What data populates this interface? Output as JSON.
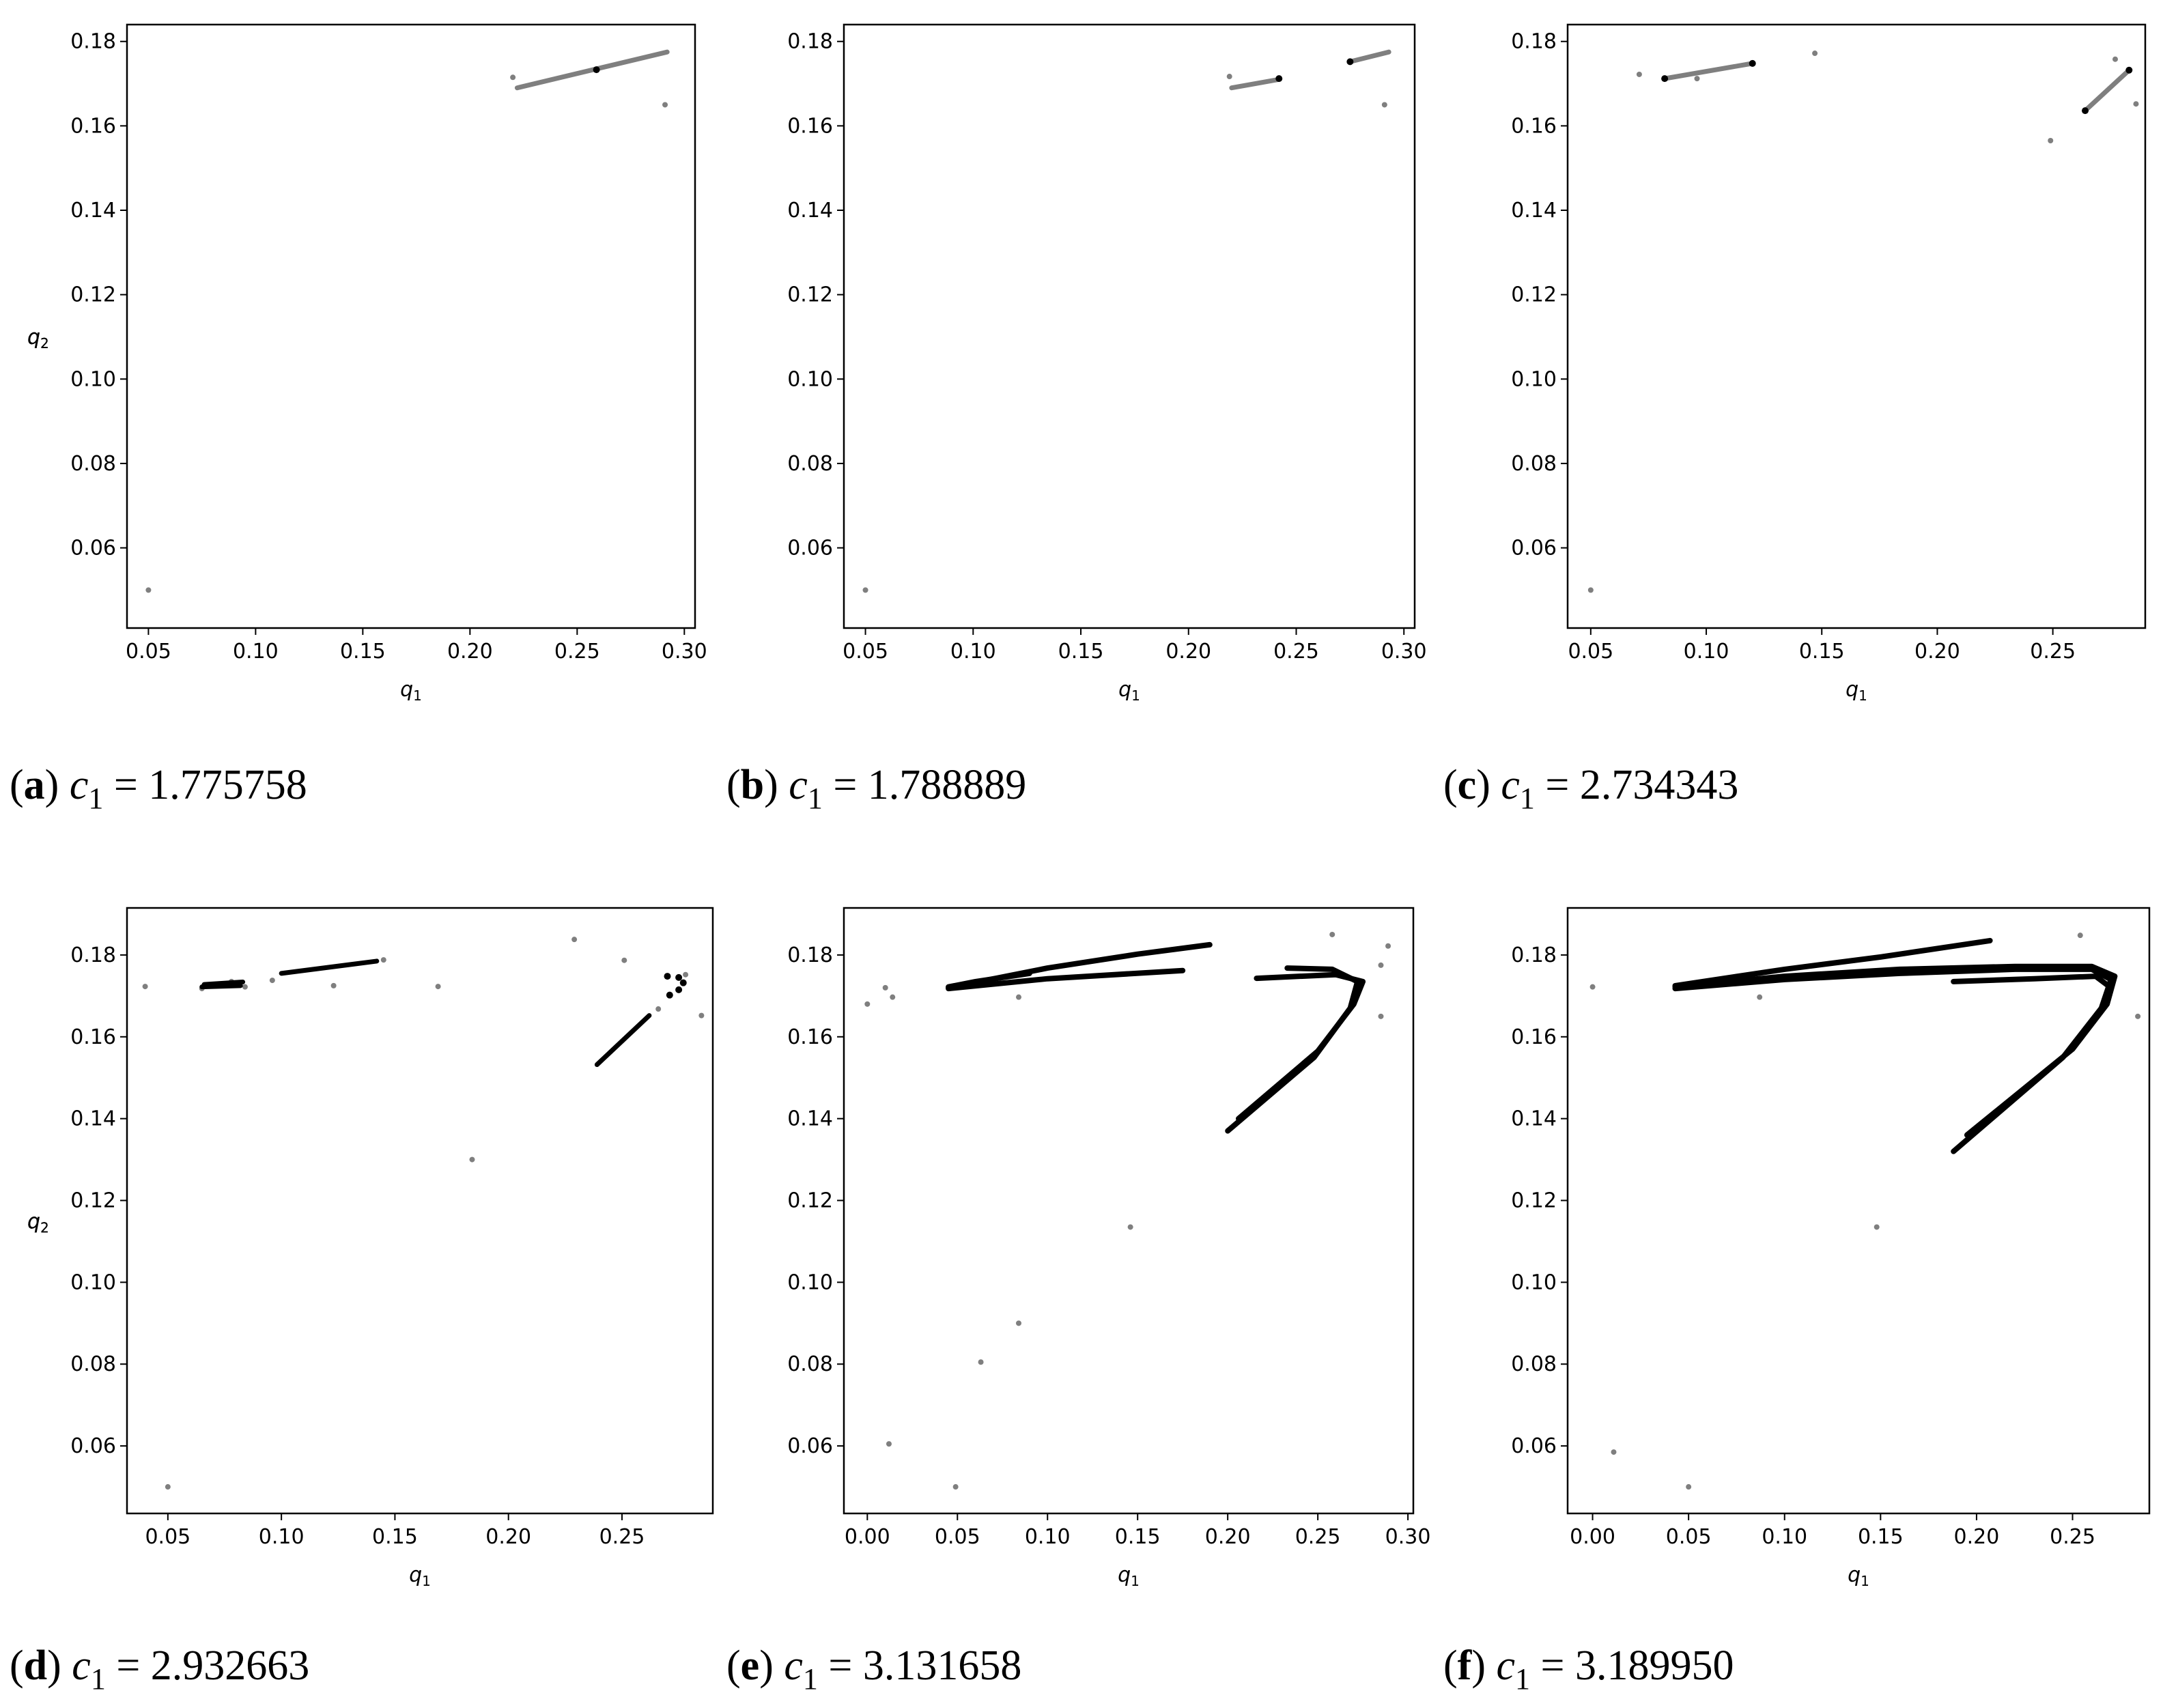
{
  "colors": {
    "gray_points": "#7f7f7f",
    "black_points": "#000000",
    "frame": "#000000"
  },
  "chart_data": [
    {
      "type": "scatter",
      "panel": "a",
      "caption_value": "1.775758",
      "xlabel": "q1",
      "ylabel": "q2",
      "xlim": [
        0.04,
        0.305
      ],
      "ylim": [
        0.041,
        0.184
      ],
      "xticks": [
        "0.05",
        "0.10",
        "0.15",
        "0.20",
        "0.25",
        "0.30"
      ],
      "yticks": [
        "0.06",
        "0.08",
        "0.10",
        "0.12",
        "0.14",
        "0.16",
        "0.18"
      ],
      "series": [
        {
          "color": "gray",
          "segments": [
            [
              [
                0.222,
                0.169
              ],
              [
                0.292,
                0.1775
              ]
            ]
          ],
          "points": [
            [
              0.05,
              0.05
            ],
            [
              0.22,
              0.1715
            ],
            [
              0.291,
              0.165
            ]
          ]
        },
        {
          "color": "black",
          "points": [
            [
              0.259,
              0.1733
            ]
          ]
        }
      ]
    },
    {
      "type": "scatter",
      "panel": "b",
      "caption_value": "1.788889",
      "xlabel": "q1",
      "ylabel": "q2",
      "xlim": [
        0.04,
        0.305
      ],
      "ylim": [
        0.041,
        0.184
      ],
      "xticks": [
        "0.05",
        "0.10",
        "0.15",
        "0.20",
        "0.25",
        "0.30"
      ],
      "yticks": [
        "0.06",
        "0.08",
        "0.10",
        "0.12",
        "0.14",
        "0.16",
        "0.18"
      ],
      "series": [
        {
          "color": "gray",
          "segments": [
            [
              [
                0.22,
                0.169
              ],
              [
                0.242,
                0.171
              ]
            ],
            [
              [
                0.275,
                0.1752
              ],
              [
                0.293,
                0.1775
              ]
            ]
          ],
          "points": [
            [
              0.05,
              0.05
            ],
            [
              0.219,
              0.1717
            ],
            [
              0.291,
              0.165
            ]
          ]
        },
        {
          "color": "black",
          "points": [
            [
              0.242,
              0.1712
            ],
            [
              0.275,
              0.1752
            ]
          ]
        }
      ]
    },
    {
      "type": "scatter",
      "panel": "c",
      "caption_value": "2.734343",
      "xlabel": "q1",
      "ylabel": "q2",
      "xlim": [
        0.04,
        0.29
      ],
      "ylim": [
        0.041,
        0.184
      ],
      "xticks": [
        "0.05",
        "0.10",
        "0.15",
        "0.20",
        "0.25"
      ],
      "yticks": [
        "0.06",
        "0.08",
        "0.10",
        "0.12",
        "0.14",
        "0.16",
        "0.18"
      ],
      "series": [
        {
          "color": "gray",
          "segments": [
            [
              [
                0.082,
                0.1712
              ],
              [
                0.12,
                0.1748
              ]
            ],
            [
              [
                0.264,
                0.1636
              ],
              [
                0.283,
                0.1732
              ]
            ]
          ],
          "points": [
            [
              0.05,
              0.05
            ],
            [
              0.071,
              0.1722
            ],
            [
              0.096,
              0.1712
            ],
            [
              0.147,
              0.1772
            ],
            [
              0.249,
              0.1565
            ],
            [
              0.277,
              0.1758
            ],
            [
              0.286,
              0.1652
            ]
          ]
        },
        {
          "color": "black",
          "points": [
            [
              0.082,
              0.1712
            ],
            [
              0.12,
              0.1748
            ],
            [
              0.264,
              0.1636
            ],
            [
              0.283,
              0.1732
            ]
          ]
        }
      ]
    },
    {
      "type": "scatter",
      "panel": "d",
      "caption_value": "2.932663",
      "xlabel": "q1",
      "ylabel": "q2",
      "xlim": [
        0.032,
        0.29
      ],
      "ylim": [
        0.0435,
        0.1915
      ],
      "xticks": [
        "0.05",
        "0.10",
        "0.15",
        "0.20",
        "0.25"
      ],
      "yticks": [
        "0.06",
        "0.08",
        "0.10",
        "0.12",
        "0.14",
        "0.16",
        "0.18"
      ],
      "series": [
        {
          "color": "gray",
          "points": [
            [
              0.04,
              0.1723
            ],
            [
              0.05,
              0.05
            ],
            [
              0.065,
              0.1718
            ],
            [
              0.078,
              0.1735
            ],
            [
              0.084,
              0.1722
            ],
            [
              0.096,
              0.1738
            ],
            [
              0.123,
              0.1725
            ],
            [
              0.145,
              0.1788
            ],
            [
              0.169,
              0.1723
            ],
            [
              0.184,
              0.13
            ],
            [
              0.229,
              0.1838
            ],
            [
              0.251,
              0.1787
            ],
            [
              0.266,
              0.1668
            ],
            [
              0.278,
              0.1752
            ],
            [
              0.285,
              0.1652
            ]
          ]
        },
        {
          "color": "black",
          "segments": [
            [
              [
                0.065,
                0.1722
              ],
              [
                0.082,
                0.1725
              ]
            ],
            [
              [
                0.066,
                0.1728
              ],
              [
                0.083,
                0.1734
              ]
            ],
            [
              [
                0.1,
                0.1755
              ],
              [
                0.142,
                0.1785
              ]
            ],
            [
              [
                0.239,
                0.1532
              ],
              [
                0.262,
                0.1652
              ]
            ]
          ],
          "points": [
            [
              0.27,
              0.1748
            ],
            [
              0.275,
              0.1745
            ],
            [
              0.277,
              0.1732
            ],
            [
              0.275,
              0.1715
            ],
            [
              0.271,
              0.1702
            ]
          ]
        }
      ]
    },
    {
      "type": "scatter",
      "panel": "e",
      "caption_value": "3.131658",
      "xlabel": "q1",
      "ylabel": "q2",
      "xlim": [
        -0.013,
        0.303
      ],
      "ylim": [
        0.0435,
        0.1915
      ],
      "xticks": [
        "0.00",
        "0.05",
        "0.10",
        "0.15",
        "0.20",
        "0.25",
        "0.30"
      ],
      "yticks": [
        "0.06",
        "0.08",
        "0.10",
        "0.12",
        "0.14",
        "0.16",
        "0.18"
      ],
      "series": [
        {
          "color": "gray",
          "points": [
            [
              0.0,
              0.168
            ],
            [
              0.01,
              0.172
            ],
            [
              0.014,
              0.1697
            ],
            [
              0.012,
              0.0605
            ],
            [
              0.049,
              0.05
            ],
            [
              0.063,
              0.0805
            ],
            [
              0.084,
              0.09
            ],
            [
              0.084,
              0.1697
            ],
            [
              0.146,
              0.1135
            ],
            [
              0.258,
              0.185
            ],
            [
              0.285,
              0.1775
            ],
            [
              0.289,
              0.1822
            ],
            [
              0.285,
              0.165
            ]
          ]
        },
        {
          "color": "black",
          "polylines": [
            [
              [
                0.045,
                0.172
              ],
              [
                0.1,
                0.1768
              ],
              [
                0.15,
                0.1802
              ],
              [
                0.19,
                0.1825
              ]
            ],
            [
              [
                0.045,
                0.1718
              ],
              [
                0.1,
                0.1742
              ],
              [
                0.175,
                0.1762
              ]
            ],
            [
              [
                0.045,
                0.1722
              ],
              [
                0.06,
                0.1735
              ],
              [
                0.09,
                0.1755
              ]
            ],
            [
              [
                0.233,
                0.1768
              ],
              [
                0.258,
                0.1765
              ],
              [
                0.272,
                0.1735
              ],
              [
                0.268,
                0.167
              ],
              [
                0.248,
                0.155
              ],
              [
                0.2,
                0.137
              ]
            ],
            [
              [
                0.216,
                0.1743
              ],
              [
                0.26,
                0.1752
              ],
              [
                0.275,
                0.1735
              ],
              [
                0.27,
                0.168
              ],
              [
                0.25,
                0.1565
              ],
              [
                0.206,
                0.14
              ]
            ]
          ]
        }
      ]
    },
    {
      "type": "scatter",
      "panel": "f",
      "caption_value": "3.189950",
      "xlabel": "q1",
      "ylabel": "q2",
      "xlim": [
        -0.013,
        0.29
      ],
      "ylim": [
        0.0435,
        0.1915
      ],
      "xticks": [
        "0.00",
        "0.05",
        "0.10",
        "0.15",
        "0.20",
        "0.25"
      ],
      "yticks": [
        "0.06",
        "0.08",
        "0.10",
        "0.12",
        "0.14",
        "0.16",
        "0.18"
      ],
      "series": [
        {
          "color": "gray",
          "points": [
            [
              0.0,
              0.1722
            ],
            [
              0.011,
              0.0585
            ],
            [
              0.05,
              0.05
            ],
            [
              0.087,
              0.1697
            ],
            [
              0.148,
              0.1135
            ],
            [
              0.254,
              0.1848
            ],
            [
              0.284,
              0.165
            ]
          ]
        },
        {
          "color": "black",
          "polylines": [
            [
              [
                0.043,
                0.1725
              ],
              [
                0.1,
                0.1765
              ],
              [
                0.15,
                0.1795
              ],
              [
                0.207,
                0.1835
              ]
            ],
            [
              [
                0.043,
                0.1718
              ],
              [
                0.1,
                0.174
              ],
              [
                0.16,
                0.1755
              ],
              [
                0.22,
                0.1765
              ],
              [
                0.26,
                0.1765
              ],
              [
                0.27,
                0.174
              ],
              [
                0.265,
                0.167
              ],
              [
                0.245,
                0.155
              ],
              [
                0.188,
                0.132
              ]
            ],
            [
              [
                0.043,
                0.1722
              ],
              [
                0.1,
                0.1748
              ],
              [
                0.16,
                0.1765
              ],
              [
                0.22,
                0.1772
              ],
              [
                0.26,
                0.1772
              ],
              [
                0.272,
                0.1748
              ],
              [
                0.268,
                0.168
              ],
              [
                0.25,
                0.157
              ],
              [
                0.195,
                0.136
              ]
            ],
            [
              [
                0.188,
                0.1735
              ],
              [
                0.23,
                0.1742
              ],
              [
                0.262,
                0.1748
              ],
              [
                0.27,
                0.172
              ]
            ]
          ]
        }
      ]
    }
  ]
}
